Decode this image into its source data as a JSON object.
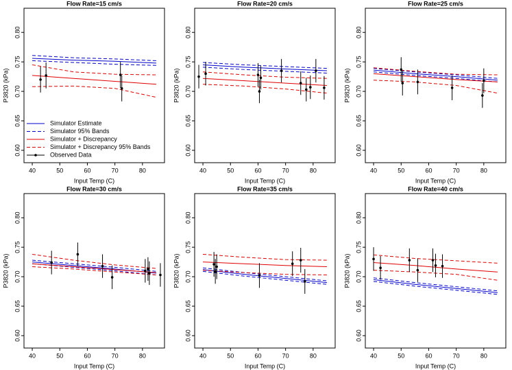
{
  "chart_data": [
    {
      "type": "line",
      "title": "Flow Rate=15 cm/s",
      "x_label": "Input Temp (C)",
      "y_label": "P3820 (kPa)",
      "xlim": [
        37,
        88
      ],
      "ylim": [
        0.579,
        0.841
      ],
      "xticks": [
        40,
        50,
        60,
        70,
        80
      ],
      "yticks": [
        {
          "value": 0.6,
          "label": "0.60"
        },
        {
          "value": 0.65,
          "label": "0.65"
        },
        {
          "value": 0.7,
          "label": "0.70"
        },
        {
          "value": 0.75,
          "label": "0.75"
        },
        {
          "value": 0.8,
          "label": "0.80"
        }
      ],
      "legend": "lower left",
      "x": [
        40,
        55,
        70,
        85
      ],
      "series": [
        {
          "name": "Simulator Estimate",
          "color": "#0000cc",
          "dash": false,
          "values": [
            0.756,
            0.753,
            0.751,
            0.748
          ]
        },
        {
          "name": "Simulator 95% Bands",
          "color": "#0000cc",
          "dash": true,
          "lower": [
            0.752,
            0.749,
            0.746,
            0.744
          ],
          "upper": [
            0.761,
            0.757,
            0.755,
            0.752
          ]
        },
        {
          "name": "Simulator + Discrepancy",
          "color": "#e00000",
          "dash": false,
          "values": [
            0.727,
            0.722,
            0.717,
            0.712
          ]
        },
        {
          "name": "Simulator + Discrepancy 95% Bands",
          "color": "#e00000",
          "dash": true,
          "lower": [
            0.708,
            0.709,
            0.705,
            0.69
          ],
          "upper": [
            0.745,
            0.733,
            0.729,
            0.728
          ]
        }
      ],
      "observed": {
        "name": "Observed Data",
        "x": [
          43,
          45,
          72,
          72.5
        ],
        "values": [
          0.72,
          0.727,
          0.728,
          0.705
        ],
        "error": 0.022
      }
    },
    {
      "type": "line",
      "title": "Flow Rate=20 cm/s",
      "x_label": "Input Temp (C)",
      "y_label": "P3820 (kPa)",
      "xlim": [
        37,
        88
      ],
      "ylim": [
        0.579,
        0.841
      ],
      "xticks": [
        40,
        50,
        60,
        70,
        80
      ],
      "yticks": [
        {
          "value": 0.6,
          "label": "0.60"
        },
        {
          "value": 0.65,
          "label": "0.65"
        },
        {
          "value": 0.7,
          "label": "0.70"
        },
        {
          "value": 0.75,
          "label": "0.75"
        },
        {
          "value": 0.8,
          "label": "0.80"
        }
      ],
      "x": [
        40,
        55,
        70,
        85
      ],
      "series": [
        {
          "color": "#0000cc",
          "dash": false,
          "values": [
            0.745,
            0.741,
            0.738,
            0.735
          ]
        },
        {
          "color": "#0000cc",
          "dash": true,
          "lower": [
            0.741,
            0.737,
            0.734,
            0.731
          ],
          "upper": [
            0.749,
            0.745,
            0.742,
            0.739
          ]
        },
        {
          "color": "#e00000",
          "dash": false,
          "values": [
            0.722,
            0.718,
            0.714,
            0.71
          ]
        },
        {
          "color": "#e00000",
          "dash": true,
          "lower": [
            0.712,
            0.709,
            0.704,
            0.697
          ],
          "upper": [
            0.733,
            0.728,
            0.724,
            0.722
          ]
        }
      ],
      "observed": {
        "x": [
          38.5,
          41,
          60,
          60.5,
          61,
          68.5,
          75.5,
          77.5,
          79,
          81,
          84
        ],
        "values": [
          0.725,
          0.73,
          0.728,
          0.7,
          0.723,
          0.735,
          0.714,
          0.703,
          0.707,
          0.735,
          0.706
        ],
        "error": 0.02
      }
    },
    {
      "type": "line",
      "title": "Flow Rate=25 cm/s",
      "x_label": "Input Temp (C)",
      "y_label": "P3820 (kPa)",
      "xlim": [
        37,
        88
      ],
      "ylim": [
        0.579,
        0.841
      ],
      "xticks": [
        40,
        50,
        60,
        70,
        80
      ],
      "yticks": [
        {
          "value": 0.6,
          "label": "0.60"
        },
        {
          "value": 0.65,
          "label": "0.65"
        },
        {
          "value": 0.7,
          "label": "0.70"
        },
        {
          "value": 0.75,
          "label": "0.75"
        },
        {
          "value": 0.8,
          "label": "0.80"
        }
      ],
      "x": [
        40,
        55,
        70,
        85
      ],
      "series": [
        {
          "color": "#0000cc",
          "dash": false,
          "values": [
            0.736,
            0.73,
            0.725,
            0.719
          ]
        },
        {
          "color": "#0000cc",
          "dash": true,
          "lower": [
            0.733,
            0.727,
            0.722,
            0.716
          ],
          "upper": [
            0.739,
            0.733,
            0.728,
            0.722
          ]
        },
        {
          "color": "#e00000",
          "dash": false,
          "values": [
            0.73,
            0.725,
            0.72,
            0.716
          ]
        },
        {
          "color": "#e00000",
          "dash": true,
          "lower": [
            0.719,
            0.716,
            0.71,
            0.697
          ],
          "upper": [
            0.74,
            0.734,
            0.729,
            0.728
          ]
        }
      ],
      "observed": {
        "x": [
          50,
          50.5,
          56,
          68.5,
          79.5,
          80
        ],
        "values": [
          0.737,
          0.714,
          0.716,
          0.706,
          0.693,
          0.718
        ],
        "error": 0.021
      }
    },
    {
      "type": "line",
      "title": "Flow Rate=30 cm/s",
      "x_label": "Input Temp (C)",
      "y_label": "P3820 (kPa)",
      "xlim": [
        37,
        88
      ],
      "ylim": [
        0.579,
        0.841
      ],
      "xticks": [
        40,
        50,
        60,
        70,
        80
      ],
      "yticks": [
        {
          "value": 0.6,
          "label": "0.60"
        },
        {
          "value": 0.65,
          "label": "0.65"
        },
        {
          "value": 0.7,
          "label": "0.70"
        },
        {
          "value": 0.75,
          "label": "0.75"
        },
        {
          "value": 0.8,
          "label": "0.80"
        }
      ],
      "x": [
        40,
        55,
        70,
        85
      ],
      "series": [
        {
          "color": "#0000cc",
          "dash": false,
          "values": [
            0.725,
            0.719,
            0.713,
            0.706
          ]
        },
        {
          "color": "#0000cc",
          "dash": true,
          "lower": [
            0.722,
            0.716,
            0.71,
            0.703
          ],
          "upper": [
            0.728,
            0.722,
            0.716,
            0.709
          ]
        },
        {
          "color": "#e00000",
          "dash": false,
          "values": [
            0.722,
            0.717,
            0.712,
            0.707
          ]
        },
        {
          "color": "#e00000",
          "dash": true,
          "lower": [
            0.717,
            0.713,
            0.708,
            0.703
          ],
          "upper": [
            0.738,
            0.728,
            0.72,
            0.714
          ]
        }
      ],
      "observed": {
        "x": [
          47,
          56.5,
          65.5,
          69,
          81,
          82,
          82.5,
          86.5
        ],
        "values": [
          0.724,
          0.738,
          0.718,
          0.699,
          0.71,
          0.713,
          0.706,
          0.703
        ],
        "error": 0.02
      }
    },
    {
      "type": "line",
      "title": "Flow Rate=35 cm/s",
      "x_label": "Input Temp (C)",
      "y_label": "P3820 (kPa)",
      "xlim": [
        37,
        88
      ],
      "ylim": [
        0.579,
        0.841
      ],
      "xticks": [
        40,
        50,
        60,
        70,
        80
      ],
      "yticks": [
        {
          "value": 0.6,
          "label": "0.60"
        },
        {
          "value": 0.65,
          "label": "0.65"
        },
        {
          "value": 0.7,
          "label": "0.70"
        },
        {
          "value": 0.75,
          "label": "0.75"
        },
        {
          "value": 0.8,
          "label": "0.80"
        }
      ],
      "x": [
        40,
        55,
        70,
        85
      ],
      "series": [
        {
          "color": "#0000cc",
          "dash": false,
          "values": [
            0.712,
            0.704,
            0.697,
            0.69
          ]
        },
        {
          "color": "#0000cc",
          "dash": true,
          "lower": [
            0.709,
            0.701,
            0.694,
            0.687
          ],
          "upper": [
            0.715,
            0.707,
            0.7,
            0.693
          ]
        },
        {
          "color": "#e00000",
          "dash": false,
          "values": [
            0.725,
            0.722,
            0.719,
            0.717
          ]
        },
        {
          "color": "#e00000",
          "dash": true,
          "lower": [
            0.711,
            0.707,
            0.704,
            0.703
          ],
          "upper": [
            0.738,
            0.733,
            0.729,
            0.728
          ]
        }
      ],
      "observed": {
        "x": [
          44,
          44.5,
          45,
          60.5,
          72.5,
          75.5,
          77
        ],
        "values": [
          0.721,
          0.709,
          0.717,
          0.702,
          0.722,
          0.728,
          0.692
        ],
        "error": 0.021
      }
    },
    {
      "type": "line",
      "title": "Flow Rate=40 cm/s",
      "x_label": "Input Temp (C)",
      "y_label": "P3820 (kPa)",
      "xlim": [
        37,
        88
      ],
      "ylim": [
        0.579,
        0.841
      ],
      "xticks": [
        40,
        50,
        60,
        70,
        80
      ],
      "yticks": [
        {
          "value": 0.6,
          "label": "0.60"
        },
        {
          "value": 0.65,
          "label": "0.65"
        },
        {
          "value": 0.7,
          "label": "0.70"
        },
        {
          "value": 0.75,
          "label": "0.75"
        },
        {
          "value": 0.8,
          "label": "0.80"
        }
      ],
      "x": [
        40,
        55,
        70,
        85
      ],
      "series": [
        {
          "color": "#0000cc",
          "dash": false,
          "values": [
            0.695,
            0.687,
            0.68,
            0.673
          ]
        },
        {
          "color": "#0000cc",
          "dash": true,
          "lower": [
            0.692,
            0.684,
            0.677,
            0.67
          ],
          "upper": [
            0.698,
            0.69,
            0.683,
            0.676
          ]
        },
        {
          "color": "#e00000",
          "dash": false,
          "values": [
            0.724,
            0.719,
            0.713,
            0.708
          ]
        },
        {
          "color": "#e00000",
          "dash": true,
          "lower": [
            0.711,
            0.708,
            0.704,
            0.694
          ],
          "upper": [
            0.737,
            0.731,
            0.727,
            0.723
          ]
        }
      ],
      "observed": {
        "x": [
          40,
          42.5,
          53,
          56,
          61.5,
          62.5,
          65
        ],
        "values": [
          0.73,
          0.715,
          0.728,
          0.711,
          0.728,
          0.719,
          0.718
        ],
        "error": 0.02
      }
    }
  ]
}
